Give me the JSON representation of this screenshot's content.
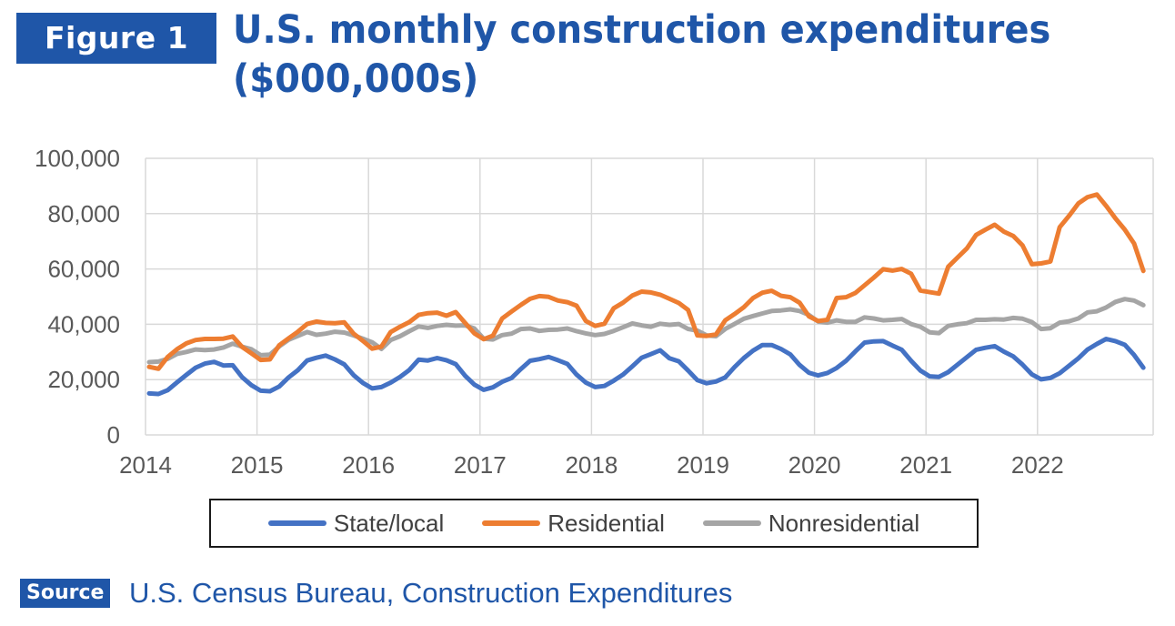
{
  "header": {
    "figure_label": "Figure 1",
    "title_line1": "U.S. monthly construction expenditures",
    "title_line2": "($000,000s)"
  },
  "source": {
    "label": "Source",
    "text": "U.S. Census Bureau, Construction Expenditures"
  },
  "chart_data": {
    "type": "line",
    "title": "U.S. monthly construction expenditures ($000,000s)",
    "xlabel": "",
    "ylabel": "",
    "x_start": "2014-01",
    "x_ticks": [
      "2014",
      "2015",
      "2016",
      "2017",
      "2018",
      "2019",
      "2020",
      "2021",
      "2022"
    ],
    "ylim": [
      0,
      100000
    ],
    "y_ticks": [
      0,
      20000,
      40000,
      60000,
      80000,
      100000
    ],
    "y_tick_labels": [
      "0",
      "20,000",
      "40,000",
      "60,000",
      "80,000",
      "100,000"
    ],
    "grid": true,
    "legend_position": "bottom",
    "series": [
      {
        "name": "State/local",
        "color": "#4472c4",
        "values": [
          15000,
          14800,
          16200,
          19000,
          21700,
          24300,
          25800,
          26400,
          25100,
          25200,
          20900,
          18000,
          16000,
          15800,
          17500,
          20800,
          23400,
          26900,
          27900,
          28700,
          27300,
          25500,
          21600,
          18800,
          16800,
          17300,
          18900,
          21000,
          23500,
          27200,
          26900,
          27800,
          27000,
          25600,
          21400,
          18200,
          16300,
          17200,
          19200,
          20600,
          23800,
          26800,
          27400,
          28200,
          27000,
          25700,
          21800,
          18900,
          17300,
          17700,
          19600,
          21800,
          24800,
          27900,
          29200,
          30600,
          27700,
          26600,
          23300,
          19800,
          18700,
          19300,
          20800,
          24500,
          27800,
          30500,
          32500,
          32500,
          31100,
          29100,
          25300,
          22500,
          21500,
          22400,
          24200,
          26800,
          30200,
          33400,
          33800,
          33900,
          32300,
          30800,
          26800,
          23300,
          21200,
          21000,
          22700,
          25400,
          28100,
          30800,
          31500,
          32100,
          30100,
          28400,
          25400,
          21900,
          20100,
          20600,
          22300,
          25000,
          27700,
          30900,
          32900,
          34700,
          33900,
          32600,
          28900,
          24300
        ]
      },
      {
        "name": "Residential",
        "color": "#ed7d31",
        "values": [
          24600,
          23900,
          28200,
          31000,
          33100,
          34300,
          34700,
          34700,
          34800,
          35600,
          31800,
          29500,
          27100,
          27300,
          32400,
          34900,
          37300,
          40100,
          41000,
          40500,
          40400,
          40700,
          36600,
          34000,
          31200,
          31900,
          37200,
          39100,
          40800,
          43400,
          44000,
          44200,
          43100,
          44400,
          40500,
          36700,
          34600,
          35900,
          42100,
          44600,
          47000,
          49200,
          50200,
          49900,
          48600,
          48000,
          46700,
          41200,
          39400,
          40200,
          45800,
          47800,
          50400,
          51800,
          51500,
          50700,
          49200,
          47700,
          45200,
          36000,
          35800,
          36300,
          41400,
          43700,
          46200,
          49500,
          51400,
          52100,
          50300,
          49800,
          47800,
          42900,
          41200,
          41600,
          49500,
          49800,
          51300,
          54100,
          56900,
          59900,
          59400,
          60000,
          58300,
          52200,
          51600,
          51100,
          60800,
          64100,
          67400,
          72300,
          74200,
          76000,
          73500,
          71900,
          68500,
          61700,
          62000,
          62700,
          75100,
          79200,
          83700,
          86000,
          86900,
          82800,
          78300,
          74200,
          69200,
          59300
        ]
      },
      {
        "name": "Nonresidential",
        "color": "#a5a5a5",
        "values": [
          26300,
          26500,
          27500,
          29300,
          30000,
          30900,
          30700,
          30900,
          31600,
          33000,
          31900,
          31000,
          28800,
          29000,
          32000,
          34400,
          35800,
          37200,
          36200,
          36600,
          37300,
          37000,
          36000,
          34800,
          33500,
          31100,
          34300,
          35700,
          37500,
          39200,
          38700,
          39400,
          39800,
          39500,
          39600,
          38500,
          34800,
          34500,
          36100,
          36600,
          38300,
          38500,
          37600,
          38000,
          38100,
          38500,
          37500,
          36700,
          36100,
          36500,
          37600,
          38900,
          40300,
          39600,
          39100,
          40200,
          39800,
          40100,
          38300,
          37700,
          36000,
          35700,
          38300,
          40100,
          42000,
          43000,
          43900,
          44800,
          45000,
          45400,
          44800,
          43400,
          41000,
          40600,
          41400,
          40900,
          40900,
          42500,
          42100,
          41400,
          41600,
          41900,
          40100,
          39100,
          37100,
          36800,
          39400,
          40000,
          40400,
          41600,
          41600,
          41800,
          41700,
          42300,
          42000,
          40800,
          38300,
          38600,
          40600,
          41100,
          42100,
          44300,
          44700,
          46100,
          48100,
          49100,
          48600,
          46900
        ]
      }
    ]
  }
}
